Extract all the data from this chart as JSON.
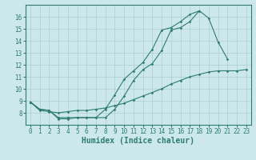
{
  "line1_x": [
    0,
    1,
    2,
    3,
    4,
    5,
    6,
    7,
    8,
    9,
    10,
    11,
    12,
    13,
    14,
    15,
    16,
    17,
    18,
    19,
    20,
    21
  ],
  "line1_y": [
    8.9,
    8.3,
    8.2,
    7.5,
    7.5,
    7.6,
    7.6,
    7.6,
    7.6,
    8.3,
    9.4,
    10.7,
    11.6,
    12.1,
    13.2,
    14.9,
    15.1,
    15.6,
    16.5,
    15.9,
    13.9,
    12.5
  ],
  "line2_x": [
    0,
    1,
    2,
    3,
    4,
    5,
    6,
    7,
    8,
    9,
    10,
    11,
    12,
    13,
    14,
    15,
    16,
    17,
    18
  ],
  "line2_y": [
    8.9,
    8.3,
    8.2,
    7.6,
    7.6,
    7.6,
    7.6,
    7.6,
    8.3,
    9.5,
    10.8,
    11.5,
    12.2,
    13.3,
    14.9,
    15.1,
    15.6,
    16.2,
    16.5
  ],
  "line3_x": [
    0,
    1,
    2,
    3,
    4,
    5,
    6,
    7,
    8,
    9,
    10,
    11,
    12,
    13,
    14,
    15,
    16,
    17,
    18,
    19,
    20,
    21,
    22,
    23
  ],
  "line3_y": [
    8.9,
    8.2,
    8.1,
    8.0,
    8.1,
    8.2,
    8.2,
    8.3,
    8.4,
    8.6,
    8.8,
    9.1,
    9.4,
    9.7,
    10.0,
    10.4,
    10.7,
    11.0,
    11.2,
    11.4,
    11.5,
    11.5,
    11.5,
    11.6
  ],
  "color": "#2e7d6e",
  "bg_color": "#cce8eb",
  "grid_color": "#aacdd2",
  "xlabel": "Humidex (Indice chaleur)",
  "xlim": [
    -0.5,
    23.5
  ],
  "ylim": [
    7,
    17
  ],
  "yticks": [
    8,
    9,
    10,
    11,
    12,
    13,
    14,
    15,
    16
  ],
  "xticks": [
    0,
    1,
    2,
    3,
    4,
    5,
    6,
    7,
    8,
    9,
    10,
    11,
    12,
    13,
    14,
    15,
    16,
    17,
    18,
    19,
    20,
    21,
    22,
    23
  ],
  "tick_fontsize": 5.5,
  "xlabel_fontsize": 7.0
}
